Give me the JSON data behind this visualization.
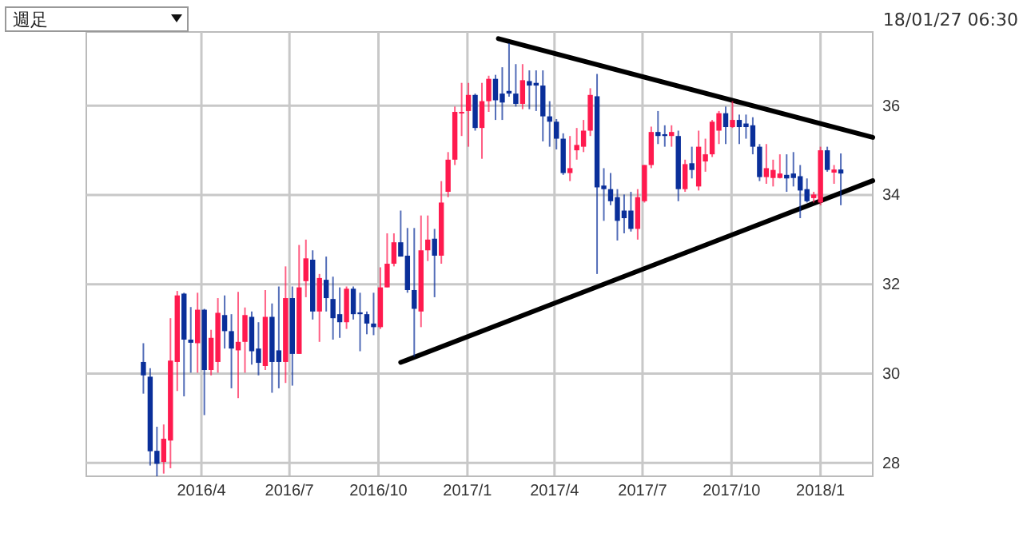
{
  "chart_data": {
    "type": "candlestick",
    "annotations": [
      "週足",
      "18/01/27 06:30"
    ],
    "xlim": [
      "2015-12-04",
      "2018-02-24"
    ],
    "ylim": [
      27.7,
      37.65
    ],
    "xticks": [
      {
        "value": "2016-04-01",
        "label": "2016/4"
      },
      {
        "value": "2016-07-01",
        "label": "2016/7"
      },
      {
        "value": "2016-10-01",
        "label": "2016/10"
      },
      {
        "value": "2017-01-01",
        "label": "2017/1"
      },
      {
        "value": "2017-04-01",
        "label": "2017/4"
      },
      {
        "value": "2017-07-01",
        "label": "2017/7"
      },
      {
        "value": "2017-10-01",
        "label": "2017/10"
      },
      {
        "value": "2018-01-01",
        "label": "2018/1"
      }
    ],
    "yticks": [
      28,
      30,
      32,
      34,
      36
    ],
    "grid": true,
    "x": [
      "2016-02-01",
      "2016-02-08",
      "2016-02-15",
      "2016-02-22",
      "2016-02-29",
      "2016-03-07",
      "2016-03-14",
      "2016-03-21",
      "2016-03-28",
      "2016-04-04",
      "2016-04-11",
      "2016-04-18",
      "2016-04-25",
      "2016-05-02",
      "2016-05-09",
      "2016-05-16",
      "2016-05-23",
      "2016-05-30",
      "2016-06-06",
      "2016-06-13",
      "2016-06-20",
      "2016-06-27",
      "2016-07-04",
      "2016-07-11",
      "2016-07-18",
      "2016-07-25",
      "2016-08-01",
      "2016-08-08",
      "2016-08-15",
      "2016-08-22",
      "2016-08-29",
      "2016-09-05",
      "2016-09-12",
      "2016-09-19",
      "2016-09-26",
      "2016-10-03",
      "2016-10-10",
      "2016-10-17",
      "2016-10-24",
      "2016-10-31",
      "2016-11-07",
      "2016-11-14",
      "2016-11-21",
      "2016-11-28",
      "2016-12-05",
      "2016-12-12",
      "2016-12-19",
      "2016-12-26",
      "2017-01-02",
      "2017-01-09",
      "2017-01-16",
      "2017-01-23",
      "2017-01-30",
      "2017-02-06",
      "2017-02-13",
      "2017-02-20",
      "2017-02-27",
      "2017-03-06",
      "2017-03-13",
      "2017-03-20",
      "2017-03-27",
      "2017-04-03",
      "2017-04-10",
      "2017-04-17",
      "2017-04-24",
      "2017-05-01",
      "2017-05-08",
      "2017-05-15",
      "2017-05-22",
      "2017-05-29",
      "2017-06-05",
      "2017-06-12",
      "2017-06-19",
      "2017-06-26",
      "2017-07-03",
      "2017-07-10",
      "2017-07-17",
      "2017-07-24",
      "2017-07-31",
      "2017-08-07",
      "2017-08-14",
      "2017-08-21",
      "2017-08-28",
      "2017-09-04",
      "2017-09-11",
      "2017-09-18",
      "2017-09-25",
      "2017-10-02",
      "2017-10-09",
      "2017-10-16",
      "2017-10-23",
      "2017-10-30",
      "2017-11-06",
      "2017-11-13",
      "2017-11-20",
      "2017-11-27",
      "2017-12-04",
      "2017-12-11",
      "2017-12-18",
      "2017-12-25",
      "2018-01-01",
      "2018-01-08",
      "2018-01-15",
      "2018-01-22"
    ],
    "ohlc": [
      [
        30.26,
        30.68,
        29.55,
        29.96
      ],
      [
        29.93,
        30.12,
        27.94,
        28.26
      ],
      [
        28.27,
        28.81,
        27.7,
        27.98
      ],
      [
        28.02,
        28.86,
        27.76,
        28.54
      ],
      [
        28.5,
        31.24,
        27.88,
        30.29
      ],
      [
        30.26,
        31.85,
        29.61,
        31.75
      ],
      [
        31.79,
        31.81,
        29.49,
        30.76
      ],
      [
        30.76,
        31.49,
        30.02,
        30.69
      ],
      [
        30.68,
        31.81,
        30.02,
        31.43
      ],
      [
        31.43,
        31.45,
        29.07,
        30.08
      ],
      [
        30.08,
        30.98,
        29.96,
        30.8
      ],
      [
        30.26,
        31.69,
        30.02,
        31.36
      ],
      [
        31.31,
        31.75,
        30.56,
        30.95
      ],
      [
        30.95,
        31.33,
        29.67,
        30.56
      ],
      [
        30.52,
        31.83,
        29.45,
        30.71
      ],
      [
        30.71,
        31.48,
        30.02,
        31.31
      ],
      [
        31.27,
        31.39,
        30.2,
        30.5
      ],
      [
        30.56,
        31.15,
        29.96,
        30.24
      ],
      [
        30.17,
        31.87,
        30.08,
        31.27
      ],
      [
        31.27,
        31.57,
        29.57,
        30.26
      ],
      [
        30.52,
        31.95,
        29.67,
        30.26
      ],
      [
        30.26,
        32.4,
        29.79,
        31.69
      ],
      [
        31.69,
        31.95,
        29.73,
        30.44
      ],
      [
        30.44,
        32.88,
        30.44,
        31.93
      ],
      [
        32.07,
        33.0,
        31.71,
        32.58
      ],
      [
        32.55,
        32.76,
        31.21,
        31.39
      ],
      [
        31.39,
        32.23,
        30.71,
        32.14
      ],
      [
        32.1,
        32.62,
        31.39,
        31.69
      ],
      [
        31.67,
        32.17,
        30.76,
        31.24
      ],
      [
        31.33,
        31.93,
        30.8,
        31.15
      ],
      [
        31.15,
        31.95,
        31.0,
        31.9
      ],
      [
        31.9,
        31.95,
        31.21,
        31.33
      ],
      [
        31.37,
        31.81,
        30.5,
        31.33
      ],
      [
        31.33,
        31.39,
        30.88,
        31.12
      ],
      [
        31.12,
        31.81,
        30.86,
        31.04
      ],
      [
        31.04,
        32.38,
        31.0,
        31.93
      ],
      [
        31.93,
        33.14,
        31.93,
        32.46
      ],
      [
        32.46,
        33.14,
        32.4,
        32.94
      ],
      [
        32.94,
        33.65,
        32.62,
        32.62
      ],
      [
        32.64,
        33.26,
        31.81,
        31.87
      ],
      [
        31.87,
        33.26,
        30.38,
        31.45
      ],
      [
        31.39,
        33.54,
        31.04,
        32.76
      ],
      [
        32.76,
        33.54,
        32.52,
        33.0
      ],
      [
        33.02,
        33.24,
        31.71,
        32.64
      ],
      [
        32.64,
        34.31,
        32.46,
        33.83
      ],
      [
        34.07,
        34.96,
        33.95,
        34.79
      ],
      [
        34.79,
        35.98,
        34.67,
        35.86
      ],
      [
        35.83,
        36.51,
        35.32,
        35.86
      ],
      [
        35.88,
        36.51,
        35.08,
        36.24
      ],
      [
        36.24,
        36.27,
        35.44,
        35.5
      ],
      [
        35.5,
        36.51,
        34.81,
        36.1
      ],
      [
        36.1,
        36.67,
        35.86,
        36.6
      ],
      [
        36.6,
        36.69,
        35.68,
        36.12
      ],
      [
        36.27,
        36.86,
        35.68,
        36.07
      ],
      [
        36.33,
        37.4,
        36.2,
        36.27
      ],
      [
        36.27,
        36.93,
        35.98,
        36.04
      ],
      [
        36.04,
        36.93,
        35.92,
        36.57
      ],
      [
        36.55,
        36.79,
        35.92,
        36.45
      ],
      [
        36.51,
        36.79,
        35.88,
        36.45
      ],
      [
        36.45,
        36.79,
        35.2,
        35.76
      ],
      [
        35.76,
        36.1,
        35.08,
        35.64
      ],
      [
        35.64,
        35.7,
        35.02,
        35.26
      ],
      [
        35.26,
        35.38,
        34.45,
        34.49
      ],
      [
        34.49,
        35.32,
        34.31,
        34.6
      ],
      [
        35.0,
        35.5,
        34.79,
        35.12
      ],
      [
        35.08,
        35.68,
        34.96,
        35.44
      ],
      [
        35.44,
        36.39,
        35.32,
        36.24
      ],
      [
        36.21,
        36.71,
        32.23,
        34.17
      ],
      [
        34.21,
        34.6,
        33.42,
        34.13
      ],
      [
        34.13,
        34.49,
        33.77,
        33.86
      ],
      [
        33.95,
        34.13,
        32.98,
        33.42
      ],
      [
        33.65,
        34.01,
        33.14,
        33.48
      ],
      [
        33.65,
        34.07,
        33.18,
        33.24
      ],
      [
        33.24,
        34.13,
        33.0,
        33.95
      ],
      [
        33.86,
        34.67,
        33.83,
        34.67
      ],
      [
        34.67,
        35.53,
        34.6,
        35.41
      ],
      [
        35.41,
        35.88,
        35.14,
        35.32
      ],
      [
        35.36,
        35.56,
        35.08,
        35.32
      ],
      [
        35.32,
        35.56,
        35.08,
        35.41
      ],
      [
        35.32,
        35.44,
        33.86,
        34.13
      ],
      [
        34.13,
        34.79,
        34.07,
        34.69
      ],
      [
        34.71,
        35.08,
        34.37,
        34.56
      ],
      [
        34.19,
        35.44,
        34.1,
        35.08
      ],
      [
        34.75,
        35.26,
        34.52,
        34.91
      ],
      [
        34.91,
        35.68,
        34.85,
        35.64
      ],
      [
        35.44,
        35.88,
        35.14,
        35.83
      ],
      [
        35.83,
        35.98,
        35.14,
        35.52
      ],
      [
        35.52,
        36.1,
        35.5,
        35.68
      ],
      [
        35.68,
        35.8,
        35.14,
        35.52
      ],
      [
        35.6,
        35.8,
        35.26,
        35.52
      ],
      [
        35.56,
        35.74,
        34.91,
        35.08
      ],
      [
        35.08,
        35.14,
        34.31,
        34.4
      ],
      [
        34.4,
        35.14,
        34.25,
        34.6
      ],
      [
        34.38,
        34.79,
        34.19,
        34.56
      ],
      [
        34.38,
        34.91,
        34.37,
        34.48
      ],
      [
        34.45,
        34.91,
        34.07,
        34.37
      ],
      [
        34.48,
        34.96,
        34.19,
        34.38
      ],
      [
        34.42,
        34.67,
        33.48,
        34.1
      ],
      [
        34.13,
        34.37,
        33.83,
        33.86
      ],
      [
        33.93,
        34.07,
        33.83,
        34.01
      ],
      [
        33.83,
        35.08,
        33.77,
        35.0
      ],
      [
        35.0,
        35.08,
        34.52,
        34.56
      ],
      [
        34.5,
        34.67,
        34.25,
        34.57
      ],
      [
        34.57,
        34.93,
        33.77,
        34.48
      ]
    ],
    "series": [
      {
        "type": "line",
        "color": "#000000",
        "x": [
          "2017-02-02",
          "2018-02-24"
        ],
        "values": [
          37.5,
          35.29
        ]
      },
      {
        "type": "line",
        "color": "#000000",
        "x": [
          "2016-10-24",
          "2018-02-24"
        ],
        "values": [
          30.25,
          34.32
        ]
      }
    ]
  }
}
